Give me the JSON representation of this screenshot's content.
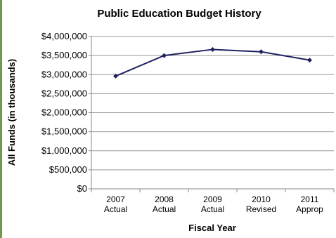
{
  "chart_data": {
    "type": "line",
    "title": "Public Education Budget History",
    "xlabel": "Fiscal Year",
    "ylabel": "All Funds (in thousands)",
    "categories": [
      [
        "2007",
        "Actual"
      ],
      [
        "2008",
        "Actual"
      ],
      [
        "2009",
        "Actual"
      ],
      [
        "2010",
        "Revised"
      ],
      [
        "2011",
        "Approp"
      ]
    ],
    "series": [
      {
        "values": [
          2960000,
          3500000,
          3660000,
          3600000,
          3380000
        ]
      }
    ],
    "ylim": [
      0,
      4000000
    ],
    "yticks": [
      "$0",
      "$500,000",
      "$1,000,000",
      "$1,500,000",
      "$2,000,000",
      "$2,500,000",
      "$3,000,000",
      "$3,500,000",
      "$4,000,000"
    ],
    "ytick_values": [
      0,
      500000,
      1000000,
      1500000,
      2000000,
      2500000,
      3000000,
      3500000,
      4000000
    ],
    "grid": true,
    "series_color": "#1f2060"
  }
}
